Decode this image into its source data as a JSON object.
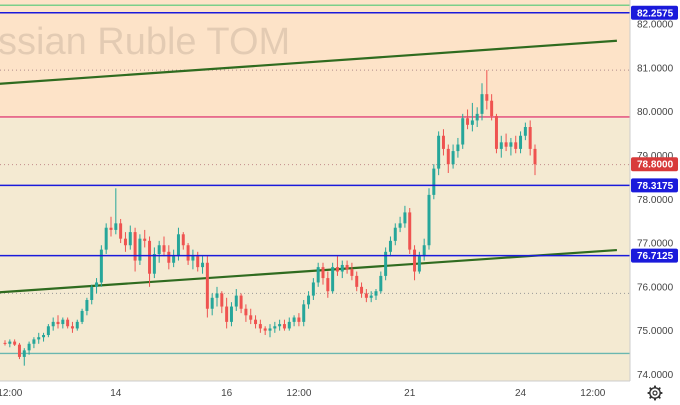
{
  "chart_data": {
    "type": "candlestick",
    "watermark": "ssian Ruble TOM",
    "yticks": [
      74.0,
      75.0,
      76.0,
      77.0,
      78.0,
      79.0,
      80.0,
      81.0,
      82.0
    ],
    "ytick_labels": [
      "74.0000",
      "75.0000",
      "76.0000",
      "77.0000",
      "78.0000",
      "79.0000",
      "80.0000",
      "81.0000",
      "82.0000"
    ],
    "ylim": [
      73.85,
      82.55
    ],
    "xticks": [
      {
        "label": "12:00",
        "bar": 1
      },
      {
        "label": "14",
        "bar": 23
      },
      {
        "label": "16",
        "bar": 46
      },
      {
        "label": "12:00",
        "bar": 61
      },
      {
        "label": "21",
        "bar": 84
      },
      {
        "label": "24",
        "bar": 107
      },
      {
        "label": "12:00",
        "bar": 122
      }
    ],
    "bars_total": 127,
    "levels": [
      {
        "label": "82.2575",
        "value": 82.2575,
        "color": "#1a1adb"
      },
      {
        "label": "78.3175",
        "value": 78.3175,
        "color": "#1a1adb"
      },
      {
        "label": "76.7125",
        "value": 76.7125,
        "color": "#1a1adb"
      }
    ],
    "last_price": {
      "label": "78.8000",
      "value": 78.8,
      "color": "#d83a3a"
    },
    "zones": [
      {
        "from": 79.85,
        "to": 82.55,
        "color": "#fde3c8"
      },
      {
        "from": 73.85,
        "to": 79.85,
        "color": "#f4ead2"
      }
    ],
    "horizontal_lines": [
      {
        "value": 79.88,
        "color": "#e0457a"
      },
      {
        "value": 82.43,
        "color": "#7ccf8a"
      },
      {
        "value": 74.48,
        "color": "#6ab7b0"
      }
    ],
    "dotted_lines": [
      {
        "value": 80.95,
        "color": "#b08a8a"
      },
      {
        "value": 78.79,
        "color": "#c28a8a"
      },
      {
        "value": 75.85,
        "color": "#999999"
      }
    ],
    "trend_lines": [
      {
        "from": {
          "bar": -2,
          "value": 80.63
        },
        "to": {
          "bar": 127,
          "value": 81.62
        },
        "color": "#2f6b1f"
      },
      {
        "from": {
          "bar": -2,
          "value": 75.87
        },
        "to": {
          "bar": 127,
          "value": 76.84
        },
        "color": "#2f6b1f"
      }
    ],
    "candles": [
      [
        74.72,
        74.78,
        74.66,
        74.7
      ],
      [
        74.7,
        74.8,
        74.62,
        74.75
      ],
      [
        74.75,
        74.8,
        74.65,
        74.68
      ],
      [
        74.68,
        74.72,
        74.35,
        74.4
      ],
      [
        74.4,
        74.6,
        74.2,
        74.55
      ],
      [
        74.55,
        74.75,
        74.45,
        74.7
      ],
      [
        74.7,
        74.85,
        74.6,
        74.8
      ],
      [
        74.8,
        74.95,
        74.7,
        74.85
      ],
      [
        74.85,
        74.95,
        74.75,
        74.9
      ],
      [
        74.9,
        75.15,
        74.85,
        75.1
      ],
      [
        75.1,
        75.3,
        75.0,
        75.2
      ],
      [
        75.2,
        75.35,
        75.05,
        75.15
      ],
      [
        75.15,
        75.3,
        75.05,
        75.25
      ],
      [
        75.25,
        75.3,
        75.05,
        75.1
      ],
      [
        75.1,
        75.2,
        74.95,
        75.05
      ],
      [
        75.05,
        75.25,
        75.0,
        75.2
      ],
      [
        75.2,
        75.5,
        75.15,
        75.45
      ],
      [
        75.45,
        75.75,
        75.35,
        75.7
      ],
      [
        75.7,
        76.05,
        75.6,
        76.0
      ],
      [
        76.0,
        76.2,
        75.85,
        76.1
      ],
      [
        76.1,
        76.95,
        76.0,
        76.85
      ],
      [
        76.85,
        77.45,
        76.75,
        77.35
      ],
      [
        77.35,
        77.6,
        77.15,
        77.3
      ],
      [
        77.3,
        78.25,
        77.2,
        77.45
      ],
      [
        77.45,
        77.55,
        77.0,
        77.1
      ],
      [
        77.1,
        77.25,
        76.8,
        76.95
      ],
      [
        76.95,
        77.4,
        76.85,
        77.25
      ],
      [
        77.25,
        77.35,
        76.35,
        76.6
      ],
      [
        76.6,
        77.2,
        76.5,
        77.1
      ],
      [
        77.1,
        77.3,
        76.9,
        77.05
      ],
      [
        77.05,
        77.15,
        76.0,
        76.3
      ],
      [
        76.3,
        76.9,
        76.2,
        76.75
      ],
      [
        76.75,
        77.05,
        76.55,
        76.95
      ],
      [
        76.95,
        77.15,
        76.7,
        76.8
      ],
      [
        76.8,
        76.95,
        76.4,
        76.55
      ],
      [
        76.55,
        76.85,
        76.45,
        76.7
      ],
      [
        76.7,
        77.35,
        76.6,
        77.2
      ],
      [
        77.2,
        77.25,
        76.85,
        76.95
      ],
      [
        76.95,
        77.0,
        76.5,
        76.6
      ],
      [
        76.6,
        76.85,
        76.4,
        76.7
      ],
      [
        76.7,
        76.8,
        76.35,
        76.45
      ],
      [
        76.45,
        76.7,
        76.3,
        76.55
      ],
      [
        76.55,
        76.7,
        75.3,
        75.5
      ],
      [
        75.5,
        75.85,
        75.35,
        75.75
      ],
      [
        75.75,
        76.0,
        75.55,
        75.85
      ],
      [
        75.85,
        75.9,
        75.4,
        75.55
      ],
      [
        75.55,
        75.75,
        75.05,
        75.2
      ],
      [
        75.2,
        75.65,
        75.1,
        75.55
      ],
      [
        75.55,
        75.95,
        75.45,
        75.8
      ],
      [
        75.8,
        75.85,
        75.4,
        75.5
      ],
      [
        75.5,
        75.6,
        75.2,
        75.35
      ],
      [
        75.35,
        75.5,
        75.15,
        75.25
      ],
      [
        75.25,
        75.35,
        75.05,
        75.15
      ],
      [
        75.15,
        75.25,
        74.95,
        75.05
      ],
      [
        75.05,
        75.1,
        74.9,
        75.0
      ],
      [
        75.0,
        75.15,
        74.85,
        75.05
      ],
      [
        75.05,
        75.2,
        74.95,
        75.1
      ],
      [
        75.1,
        75.25,
        75.0,
        75.15
      ],
      [
        75.15,
        75.25,
        75.0,
        75.05
      ],
      [
        75.05,
        75.3,
        75.0,
        75.2
      ],
      [
        75.2,
        75.35,
        75.1,
        75.3
      ],
      [
        75.3,
        75.4,
        75.1,
        75.2
      ],
      [
        75.2,
        75.7,
        75.1,
        75.6
      ],
      [
        75.6,
        75.9,
        75.5,
        75.8
      ],
      [
        75.8,
        76.2,
        75.7,
        76.1
      ],
      [
        76.1,
        76.55,
        76.0,
        76.45
      ],
      [
        76.45,
        76.55,
        76.05,
        76.2
      ],
      [
        76.2,
        76.35,
        75.75,
        75.9
      ],
      [
        75.9,
        76.55,
        75.85,
        76.45
      ],
      [
        76.45,
        76.7,
        76.25,
        76.35
      ],
      [
        76.35,
        76.6,
        76.2,
        76.5
      ],
      [
        76.5,
        76.6,
        76.3,
        76.4
      ],
      [
        76.4,
        76.55,
        76.15,
        76.25
      ],
      [
        76.25,
        76.35,
        75.9,
        76.0
      ],
      [
        76.0,
        76.1,
        75.75,
        75.85
      ],
      [
        75.85,
        75.95,
        75.65,
        75.75
      ],
      [
        75.75,
        75.9,
        75.65,
        75.8
      ],
      [
        75.8,
        75.95,
        75.7,
        75.9
      ],
      [
        75.9,
        76.35,
        75.85,
        76.25
      ],
      [
        76.25,
        76.9,
        76.15,
        76.8
      ],
      [
        76.8,
        77.15,
        76.7,
        77.05
      ],
      [
        77.05,
        77.45,
        76.95,
        77.35
      ],
      [
        77.35,
        77.6,
        77.25,
        77.45
      ],
      [
        77.45,
        77.85,
        77.35,
        77.7
      ],
      [
        77.7,
        77.8,
        76.75,
        76.85
      ],
      [
        76.85,
        76.95,
        76.15,
        76.35
      ],
      [
        76.35,
        76.8,
        76.3,
        76.7
      ],
      [
        76.7,
        77.1,
        76.6,
        76.95
      ],
      [
        76.95,
        78.25,
        76.85,
        78.1
      ],
      [
        78.1,
        78.8,
        78.0,
        78.7
      ],
      [
        78.7,
        79.55,
        78.55,
        79.45
      ],
      [
        79.45,
        79.6,
        79.0,
        79.15
      ],
      [
        79.15,
        79.25,
        78.6,
        78.8
      ],
      [
        78.8,
        79.25,
        78.7,
        79.1
      ],
      [
        79.1,
        79.4,
        78.95,
        79.25
      ],
      [
        79.25,
        79.95,
        79.15,
        79.85
      ],
      [
        79.85,
        80.05,
        79.6,
        79.7
      ],
      [
        79.7,
        80.2,
        79.55,
        79.8
      ],
      [
        79.8,
        80.1,
        79.65,
        79.95
      ],
      [
        79.95,
        80.65,
        79.8,
        80.4
      ],
      [
        80.4,
        80.95,
        80.05,
        80.25
      ],
      [
        80.25,
        80.4,
        79.8,
        79.9
      ],
      [
        79.9,
        79.95,
        79.05,
        79.15
      ],
      [
        79.15,
        79.45,
        78.95,
        79.3
      ],
      [
        79.3,
        79.5,
        79.1,
        79.2
      ],
      [
        79.2,
        79.4,
        79.0,
        79.3
      ],
      [
        79.3,
        79.45,
        79.05,
        79.15
      ],
      [
        79.15,
        79.55,
        79.05,
        79.45
      ],
      [
        79.45,
        79.75,
        79.35,
        79.65
      ],
      [
        79.65,
        79.8,
        79.0,
        79.15
      ],
      [
        79.15,
        79.25,
        78.55,
        78.8
      ]
    ]
  }
}
